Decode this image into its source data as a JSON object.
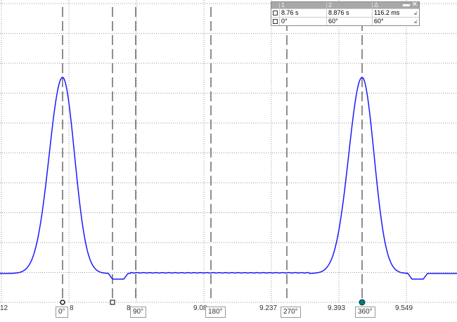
{
  "axis": {
    "ticks": [
      "12",
      "8",
      "8.",
      "9.08",
      "9.237",
      "9.393",
      "9.549"
    ]
  },
  "cursors": [
    {
      "label": "0°",
      "marker": "circle-open"
    },
    {
      "label": "",
      "marker": "square"
    },
    {
      "label": "90°"
    },
    {
      "label": "180°"
    },
    {
      "label": "270°"
    },
    {
      "label": "360°",
      "marker": "circle-filled"
    }
  ],
  "table": {
    "headers": [
      "1",
      "2",
      "Δ"
    ],
    "rows": [
      {
        "c1": "8.76 s",
        "c2": "8.876 s",
        "c3": "116.2 ms"
      },
      {
        "c1": "0°",
        "c2": "60°",
        "c3": "60°"
      }
    ]
  },
  "colors": {
    "trace": "#1a1aff",
    "cursor_fill": "#007a7a"
  }
}
